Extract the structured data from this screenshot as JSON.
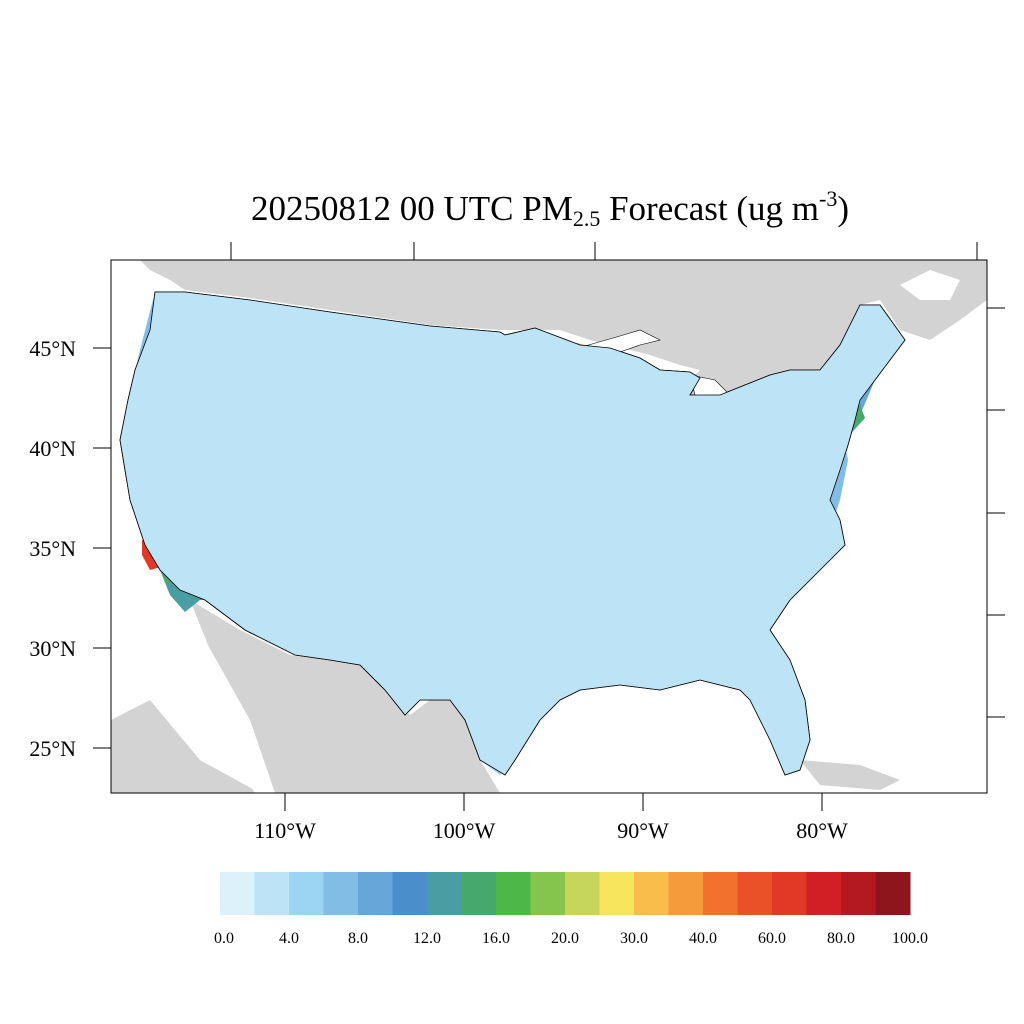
{
  "title": {
    "date_time": "20250812 00 UTC",
    "species": "PM",
    "species_sub": "2.5",
    "suffix": "Forecast (ug m",
    "unit_sup": "-3",
    "close": ")"
  },
  "axes": {
    "lat_labels": [
      "45°N",
      "40°N",
      "35°N",
      "30°N",
      "25°N"
    ],
    "lat_values": [
      45,
      40,
      35,
      30,
      25
    ],
    "lon_labels": [
      "110°W",
      "100°W",
      "90°W",
      "80°W"
    ],
    "lon_values": [
      -110,
      -100,
      -90,
      -80
    ]
  },
  "colorbar": {
    "colors": [
      "#ddf1fb",
      "#bde3f6",
      "#9bd5f3",
      "#82bde6",
      "#67a6d9",
      "#4b8ecc",
      "#4a9da3",
      "#47a86c",
      "#4db848",
      "#86c54d",
      "#c5d65a",
      "#f7e55d",
      "#f8bd4a",
      "#f59b3c",
      "#f2712c",
      "#ea5128",
      "#e03a26",
      "#d21f26",
      "#b3191f",
      "#8e151b"
    ],
    "labels": [
      "0.0",
      "4.0",
      "8.0",
      "12.0",
      "16.0",
      "20.0",
      "30.0",
      "40.0",
      "60.0",
      "80.0",
      "100.0"
    ]
  },
  "colors": {
    "land_outside": "#d3d3d3",
    "water": "#ffffff",
    "background_pm": "#bde3f6",
    "west_clean": "#ddf1fb",
    "east_blue": "#67a6d9"
  }
}
